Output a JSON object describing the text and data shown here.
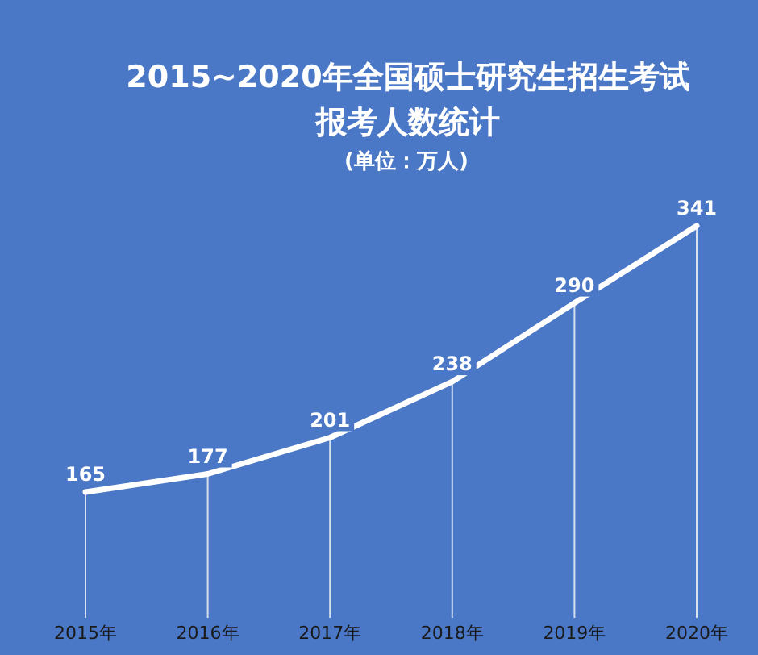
{
  "chart_data": {
    "type": "line",
    "title": "2015~2020年全国硕士研究生招生考试报考人数统计",
    "subtitle": "(单位：万人)",
    "categories": [
      "2015年",
      "2016年",
      "2017年",
      "2018年",
      "2019年",
      "2020年"
    ],
    "series": [
      {
        "color": "#ffffff",
        "values": [
          165,
          177,
          201,
          238,
          290,
          341
        ]
      }
    ],
    "data_labels": true,
    "marker": "none",
    "line_style": "solid",
    "grid": "x"
  }
}
